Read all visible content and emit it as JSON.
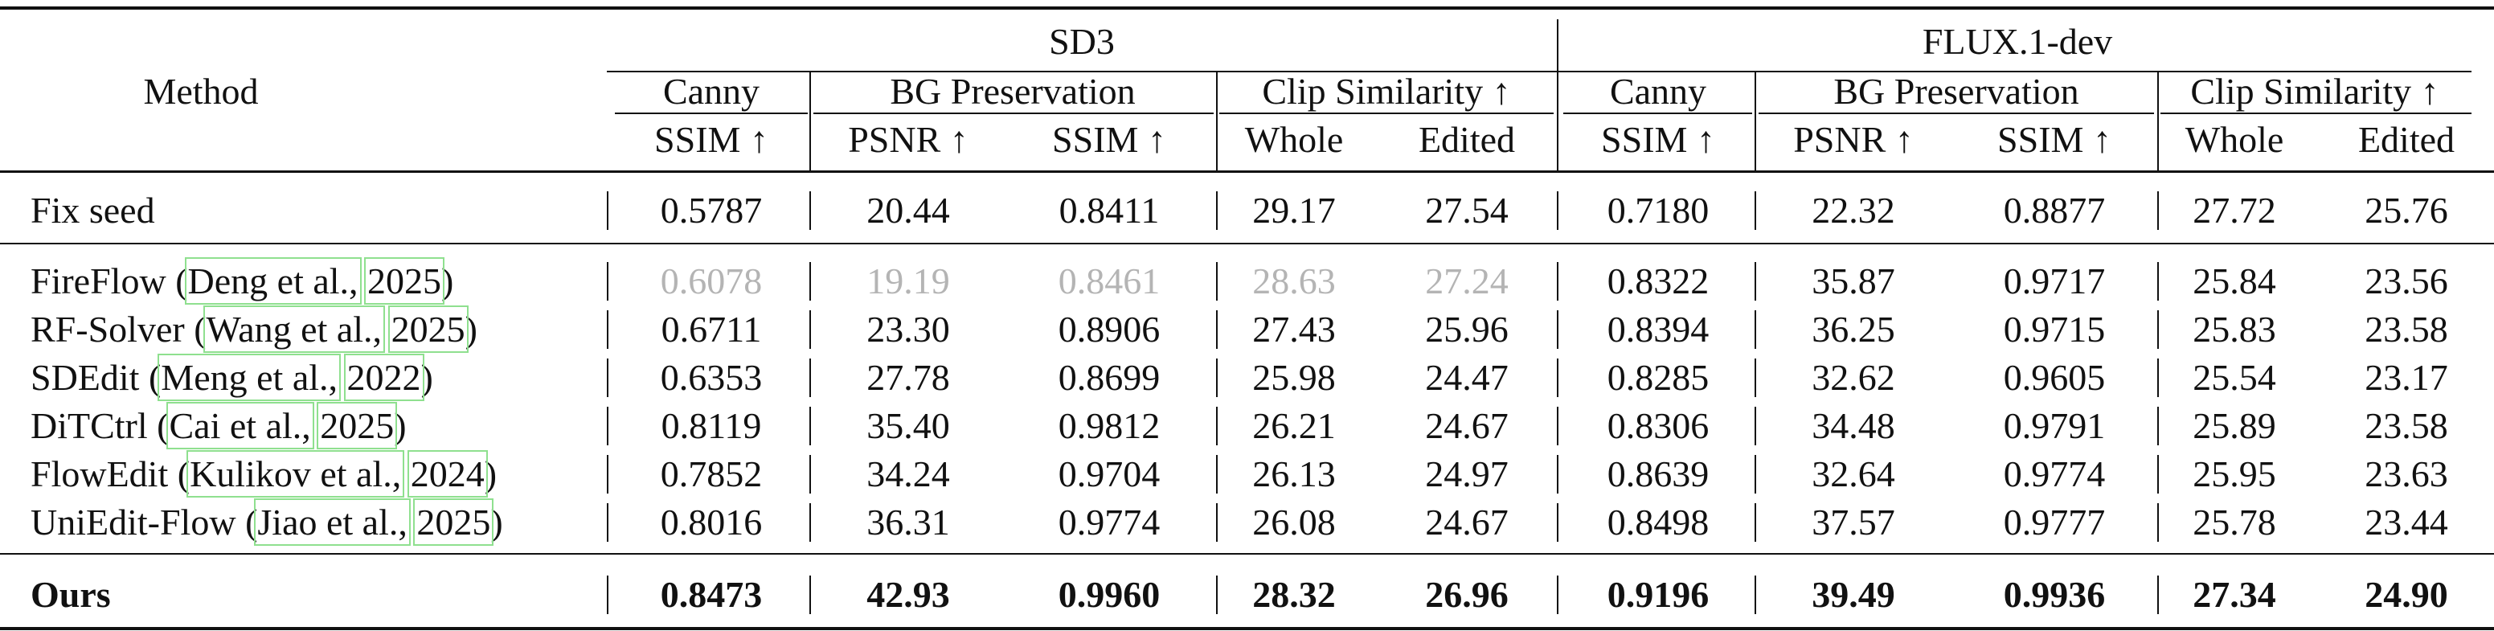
{
  "header": {
    "method": "Method",
    "models": [
      {
        "name": "SD3"
      },
      {
        "name": "FLUX.1-dev"
      }
    ],
    "groups": [
      "Canny",
      "BG Preservation",
      "Clip Similarity ↑"
    ],
    "metrics": [
      "SSIM ↑",
      "PSNR ↑",
      "SSIM ↑",
      "Whole",
      "Edited"
    ]
  },
  "rows": [
    {
      "method": "Fix seed",
      "cite_author": "",
      "cite_year": "",
      "style": "normal",
      "sd3": [
        "0.5787",
        "20.44",
        "0.8411",
        "29.17",
        "27.54"
      ],
      "flux": [
        "0.7180",
        "22.32",
        "0.8877",
        "27.72",
        "25.76"
      ]
    },
    {
      "method": "FireFlow",
      "cite_author": "Deng et al.,",
      "cite_year": "2025",
      "style": "gray-sd3",
      "sd3": [
        "0.6078",
        "19.19",
        "0.8461",
        "28.63",
        "27.24"
      ],
      "flux": [
        "0.8322",
        "35.87",
        "0.9717",
        "25.84",
        "23.56"
      ]
    },
    {
      "method": "RF-Solver",
      "cite_author": "Wang et al.,",
      "cite_year": "2025",
      "style": "normal",
      "sd3": [
        "0.6711",
        "23.30",
        "0.8906",
        "27.43",
        "25.96"
      ],
      "flux": [
        "0.8394",
        "36.25",
        "0.9715",
        "25.83",
        "23.58"
      ]
    },
    {
      "method": "SDEdit",
      "cite_author": "Meng et al.,",
      "cite_year": "2022",
      "style": "normal",
      "sd3": [
        "0.6353",
        "27.78",
        "0.8699",
        "25.98",
        "24.47"
      ],
      "flux": [
        "0.8285",
        "32.62",
        "0.9605",
        "25.54",
        "23.17"
      ]
    },
    {
      "method": "DiTCtrl",
      "cite_author": "Cai et al.,",
      "cite_year": "2025",
      "style": "normal",
      "sd3": [
        "0.8119",
        "35.40",
        "0.9812",
        "26.21",
        "24.67"
      ],
      "flux": [
        "0.8306",
        "34.48",
        "0.9791",
        "25.89",
        "23.58"
      ]
    },
    {
      "method": "FlowEdit",
      "cite_author": "Kulikov et al.,",
      "cite_year": "2024",
      "style": "normal",
      "sd3": [
        "0.7852",
        "34.24",
        "0.9704",
        "26.13",
        "24.97"
      ],
      "flux": [
        "0.8639",
        "32.64",
        "0.9774",
        "25.95",
        "23.63"
      ]
    },
    {
      "method": "UniEdit-Flow",
      "cite_author": "Jiao et al.,",
      "cite_year": "2025",
      "style": "normal",
      "sd3": [
        "0.8016",
        "36.31",
        "0.9774",
        "26.08",
        "24.67"
      ],
      "flux": [
        "0.8498",
        "37.57",
        "0.9777",
        "25.78",
        "23.44"
      ]
    },
    {
      "method": "Ours",
      "cite_author": "",
      "cite_year": "",
      "style": "bold",
      "sd3": [
        "0.8473",
        "42.93",
        "0.9960",
        "28.32",
        "26.96"
      ],
      "flux": [
        "0.9196",
        "39.49",
        "0.9936",
        "27.34",
        "24.90"
      ]
    }
  ]
}
